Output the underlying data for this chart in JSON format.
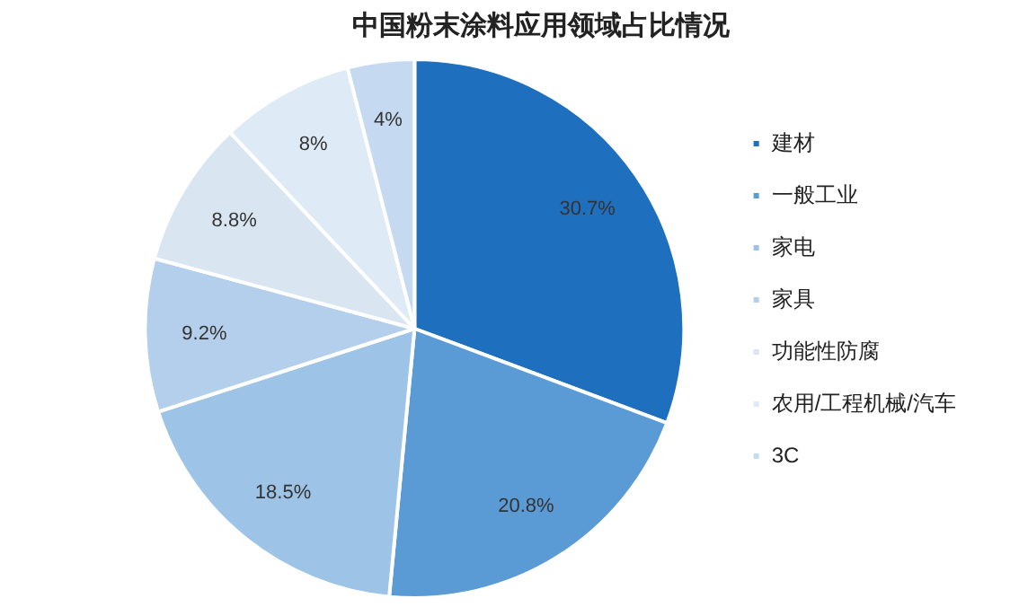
{
  "chart_data": {
    "type": "pie",
    "title": "中国粉末涂料应用领域占比情况",
    "categories": [
      "建材",
      "一般工业",
      "家电",
      "家具",
      "功能性防腐",
      "农用/工程机械/汽车",
      "3C"
    ],
    "values": [
      30.7,
      20.8,
      18.5,
      9.2,
      8.8,
      8,
      4
    ],
    "colors": [
      "#1f6fbf",
      "#5b9bd5",
      "#9dc3e6",
      "#b4cfeb",
      "#dae5f2",
      "#deebf7",
      "#c5daf0"
    ],
    "value_labels": [
      "30.7%",
      "20.8%",
      "18.5%",
      "9.2%",
      "8.8%",
      "8%",
      "4%"
    ],
    "legend": "right"
  }
}
